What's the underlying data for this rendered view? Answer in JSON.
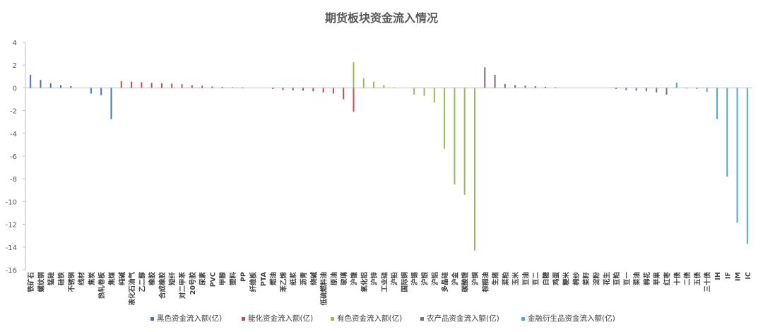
{
  "chart_data": {
    "type": "bar",
    "title": "期货板块资金流入情况",
    "ylim": [
      -16,
      4
    ],
    "yticks": [
      4,
      2,
      0,
      -2,
      -4,
      -6,
      -8,
      -10,
      -12,
      -14,
      -16
    ],
    "grid": false,
    "legend_position": "bottom",
    "categories": [
      "铁矿石",
      "螺纹钢",
      "锰硅",
      "硅铁",
      "不锈钢",
      "线材",
      "焦炭",
      "热轧卷板",
      "焦煤",
      "纯碱",
      "液化石油气",
      "乙二醇",
      "橡胶",
      "合成橡胶",
      "短纤",
      "对二甲苯",
      "20号胶",
      "尿素",
      "PVC",
      "甲醇",
      "塑料",
      "PP",
      "纤维板",
      "PTA",
      "燃油",
      "苯乙烯",
      "纸浆",
      "沥青",
      "烧碱",
      "低硫燃料油",
      "原油",
      "玻璃",
      "沪镍",
      "氧化铝",
      "沪锌",
      "工业硅",
      "沪铅",
      "国际铜",
      "沪锡",
      "沪银",
      "沪铝",
      "多晶硅",
      "沪金",
      "碳酸锂",
      "沪铜",
      "棕榈油",
      "生猪",
      "菜粕",
      "玉米",
      "豆油",
      "豆二",
      "白糖",
      "鸡蛋",
      "粳米",
      "棉纱",
      "菜籽",
      "淀粉",
      "花生",
      "豆粕",
      "豆一",
      "菜油",
      "棉花",
      "苹果",
      "红枣",
      "十债",
      "二债",
      "五债",
      "三十债",
      "IH",
      "IF",
      "IM",
      "IC"
    ],
    "series": [
      {
        "name": "黑色资金流入额(亿)",
        "color": "#4472C4",
        "values": [
          1.15,
          0.7,
          0.4,
          0.25,
          0.15,
          0,
          -0.5,
          -0.65,
          -2.75,
          null,
          null,
          null,
          null,
          null,
          null,
          null,
          null,
          null,
          null,
          null,
          null,
          null,
          null,
          null,
          null,
          null,
          null,
          null,
          null,
          null,
          null,
          null,
          null,
          null,
          null,
          null,
          null,
          null,
          null,
          null,
          null,
          null,
          null,
          null,
          null,
          null,
          null,
          null,
          null,
          null,
          null,
          null,
          null,
          null,
          null,
          null,
          null,
          null,
          null,
          null,
          null,
          null,
          null,
          null,
          null,
          null,
          null,
          null,
          null,
          null,
          null,
          null
        ]
      },
      {
        "name": "能化资金流入额(亿)",
        "color": "#C0504D",
        "values": [
          null,
          null,
          null,
          null,
          null,
          null,
          null,
          null,
          null,
          0.6,
          0.55,
          0.5,
          0.45,
          0.4,
          0.38,
          0.32,
          0.22,
          0.18,
          0.12,
          0.08,
          0.05,
          0.03,
          0,
          0,
          -0.1,
          -0.2,
          -0.22,
          -0.25,
          -0.3,
          -0.4,
          -0.5,
          -1.0,
          -2.1,
          null,
          null,
          null,
          null,
          null,
          null,
          null,
          null,
          null,
          null,
          null,
          null,
          null,
          null,
          null,
          null,
          null,
          null,
          null,
          null,
          null,
          null,
          null,
          null,
          null,
          null,
          null,
          null,
          null,
          null,
          null,
          null,
          null,
          null,
          null,
          null,
          null,
          null,
          null
        ]
      },
      {
        "name": "有色资金流入额(亿)",
        "color": "#9BBB59",
        "values": [
          null,
          null,
          null,
          null,
          null,
          null,
          null,
          null,
          null,
          null,
          null,
          null,
          null,
          null,
          null,
          null,
          null,
          null,
          null,
          null,
          null,
          null,
          null,
          null,
          null,
          null,
          null,
          null,
          null,
          null,
          null,
          null,
          2.25,
          0.85,
          0.55,
          0.25,
          0.05,
          0,
          -0.6,
          -0.7,
          -1.3,
          -5.35,
          -8.5,
          -9.4,
          -14.3,
          null,
          null,
          null,
          null,
          null,
          null,
          null,
          null,
          null,
          null,
          null,
          null,
          null,
          null,
          null,
          null,
          null,
          null,
          null,
          null,
          null,
          null,
          null,
          null,
          null,
          null,
          null
        ]
      },
      {
        "name": "农产品资金流入额(亿)",
        "color": "#8064A2",
        "values": [
          null,
          null,
          null,
          null,
          null,
          null,
          null,
          null,
          null,
          null,
          null,
          null,
          null,
          null,
          null,
          null,
          null,
          null,
          null,
          null,
          null,
          null,
          null,
          null,
          null,
          null,
          null,
          null,
          null,
          null,
          null,
          null,
          null,
          null,
          null,
          null,
          null,
          null,
          null,
          null,
          null,
          null,
          null,
          null,
          null,
          1.8,
          1.15,
          0.35,
          0.25,
          0.2,
          0.15,
          0.1,
          0.05,
          0,
          0,
          0,
          0,
          0,
          -0.1,
          -0.2,
          -0.25,
          -0.3,
          -0.4,
          -0.6,
          null,
          null,
          null,
          null,
          null,
          null,
          null,
          null
        ]
      },
      {
        "name": "金融衍生品资金流入额(亿)",
        "color": "#4BACC6",
        "values": [
          null,
          null,
          null,
          null,
          null,
          null,
          null,
          null,
          null,
          null,
          null,
          null,
          null,
          null,
          null,
          null,
          null,
          null,
          null,
          null,
          null,
          null,
          null,
          null,
          null,
          null,
          null,
          null,
          null,
          null,
          null,
          null,
          null,
          null,
          null,
          null,
          null,
          null,
          null,
          null,
          null,
          null,
          null,
          null,
          null,
          null,
          null,
          null,
          null,
          null,
          null,
          null,
          null,
          null,
          null,
          null,
          null,
          null,
          null,
          null,
          null,
          null,
          null,
          null,
          0.45,
          -0.05,
          -0.1,
          -0.35,
          -2.75,
          -7.8,
          -11.85,
          -13.7
        ]
      }
    ]
  }
}
